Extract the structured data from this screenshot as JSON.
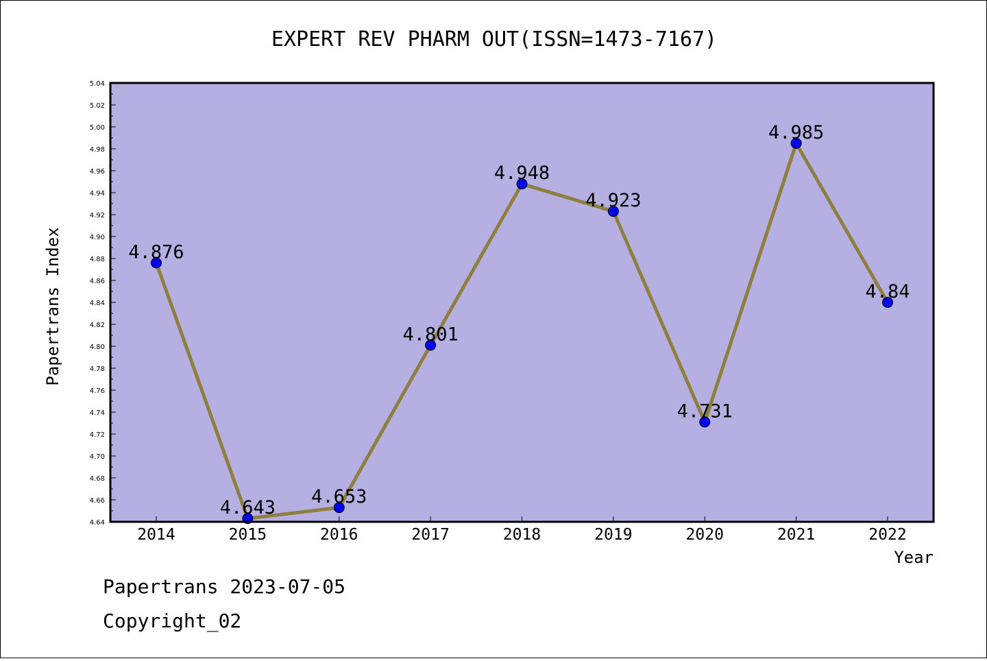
{
  "chart_data": {
    "type": "line",
    "title": "EXPERT REV PHARM OUT(ISSN=1473-7167)",
    "xlabel": "Year",
    "ylabel": "Papertrans Index",
    "categories": [
      "2014",
      "2015",
      "2016",
      "2017",
      "2018",
      "2019",
      "2020",
      "2021",
      "2022"
    ],
    "series": [
      {
        "values": [
          4.876,
          4.643,
          4.653,
          4.801,
          4.948,
          4.923,
          4.731,
          4.985,
          4.84
        ],
        "data_labels": [
          "4.876",
          "4.643",
          "4.653",
          "4.801",
          "4.948",
          "4.923",
          "4.731",
          "4.985",
          "4.84"
        ]
      }
    ],
    "ylim": [
      4.64,
      5.04
    ],
    "y_ticks": [
      "4.64",
      "4.66",
      "4.68",
      "4.70",
      "4.72",
      "4.74",
      "4.76",
      "4.78",
      "4.80",
      "4.82",
      "4.84",
      "4.86",
      "4.88",
      "4.90",
      "4.92",
      "4.94",
      "4.96",
      "4.98",
      "5.00",
      "5.02",
      "5.04"
    ],
    "grid": false,
    "colors": {
      "plot_background": "#b5afe2",
      "line": "#8e7f3e",
      "marker": "#0000ee"
    }
  },
  "footer": {
    "date_line": "Papertrans 2023-07-05",
    "copyright": "Copyright_02"
  }
}
